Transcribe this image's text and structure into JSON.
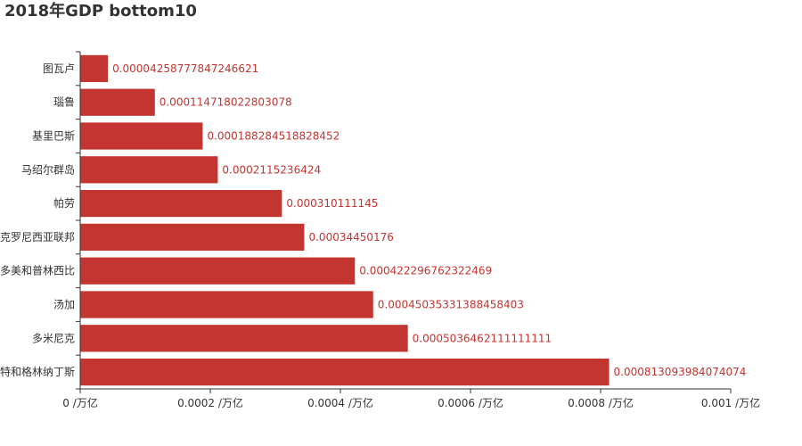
{
  "title": "2018年GDP bottom10",
  "colors": {
    "bar": "#c23531",
    "axis": "#333333"
  },
  "chart_data": {
    "type": "bar",
    "orientation": "horizontal",
    "title": "2018年GDP bottom10",
    "categories": [
      "特和格林纳丁斯",
      "多米尼克",
      "汤加",
      "多美和普林西比",
      "克罗尼西亚联邦",
      "帕劳",
      "马绍尔群岛",
      "基里巴斯",
      "瑙鲁",
      "图瓦卢"
    ],
    "values": [
      0.000813093984074074,
      0.0005036462111111111,
      0.00045035331388458403,
      0.000422296762322469,
      0.00034450176,
      0.000310111145,
      0.0002115236424,
      0.000188284518828452,
      0.000114718022803078,
      4.258777847246621e-05
    ],
    "value_labels": [
      "0.000813093984074074",
      "0.0005036462111111111",
      "0.00045035331388458403",
      "0.000422296762322469",
      "0.00034450176",
      "0.000310111145",
      "0.0002115236424",
      "0.000188284518828452",
      "0.000114718022803078",
      "0.00004258777847246621"
    ],
    "x_tick_labels": [
      "0 /万亿",
      "0.0002 /万亿",
      "0.0004 /万亿",
      "0.0006 /万亿",
      "0.0008 /万亿",
      "0.001 /万亿"
    ],
    "x_ticks": [
      0,
      0.0002,
      0.0004,
      0.0006,
      0.0008,
      0.001
    ],
    "xlim": [
      0,
      0.001
    ],
    "grid": false,
    "legend": "none"
  }
}
